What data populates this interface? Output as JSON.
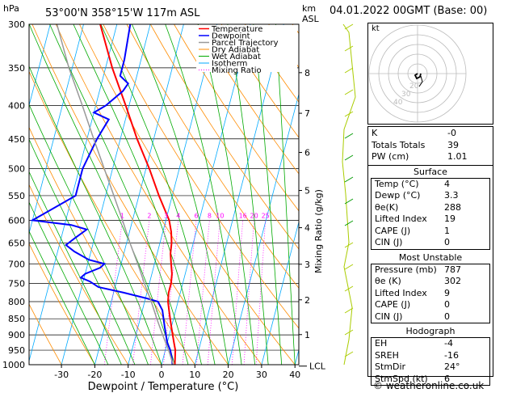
{
  "header": {
    "location": "53°00'N  358°15'W  117m  ASL",
    "datetime": "04.01.2022  00GMT  (Base: 00)",
    "hpa_label": "hPa",
    "km_label": "km",
    "asl_label": "ASL"
  },
  "footer": {
    "copyright": "© weatheronline.co.uk"
  },
  "chart_data": {
    "type": "line",
    "title": "",
    "xlabel": "Dewpoint / Temperature (°C)",
    "ylabel": "",
    "right_axis_label": "Mixing Ratio (g/kg)",
    "xlim": [
      -35,
      40
    ],
    "ylim": [
      1000,
      300
    ],
    "x_ticks": [
      -30,
      -20,
      -10,
      0,
      10,
      20,
      30,
      40
    ],
    "pressure_ticks": [
      300,
      350,
      400,
      450,
      500,
      550,
      600,
      650,
      700,
      750,
      800,
      850,
      900,
      950,
      1000
    ],
    "km_ticks": [
      {
        "label": "8",
        "p": 356
      },
      {
        "label": "7",
        "p": 411
      },
      {
        "label": "6",
        "p": 472
      },
      {
        "label": "5",
        "p": 540
      },
      {
        "label": "4",
        "p": 616
      },
      {
        "label": "3",
        "p": 701
      },
      {
        "label": "2",
        "p": 795
      },
      {
        "label": "1",
        "p": 899
      }
    ],
    "lcl_label": "LCL",
    "lcl_pressure": 1005,
    "mixing_ratio_labels": [
      "1",
      "2",
      "3",
      "4",
      "6",
      "8",
      "10",
      "16",
      "20",
      "25"
    ],
    "mixing_ratio_values": [
      1,
      2,
      3,
      4,
      6,
      8,
      10,
      16,
      20,
      25
    ],
    "legend": [
      "Temperature",
      "Dewpoint",
      "Parcel Trajectory",
      "Dry Adiabat",
      "Wet Adiabat",
      "Isotherm",
      "Mixing Ratio"
    ],
    "series": [
      {
        "name": "Temperature",
        "color": "#ff0000",
        "points": [
          [
            1000,
            4
          ],
          [
            975,
            3.5
          ],
          [
            950,
            3
          ],
          [
            925,
            2
          ],
          [
            900,
            1
          ],
          [
            875,
            0
          ],
          [
            850,
            -1
          ],
          [
            825,
            -2
          ],
          [
            800,
            -3
          ],
          [
            775,
            -3.5
          ],
          [
            750,
            -3.5
          ],
          [
            725,
            -4
          ],
          [
            700,
            -5
          ],
          [
            675,
            -6
          ],
          [
            650,
            -6.5
          ],
          [
            625,
            -7.5
          ],
          [
            600,
            -9
          ],
          [
            550,
            -14
          ],
          [
            500,
            -19
          ],
          [
            450,
            -25
          ],
          [
            400,
            -31
          ],
          [
            350,
            -38
          ],
          [
            300,
            -45
          ]
        ]
      },
      {
        "name": "Dewpoint",
        "color": "#0000ff",
        "points": [
          [
            1000,
            3.3
          ],
          [
            975,
            2.5
          ],
          [
            950,
            1.5
          ],
          [
            925,
            0
          ],
          [
            900,
            -1
          ],
          [
            875,
            -2
          ],
          [
            850,
            -3
          ],
          [
            825,
            -4
          ],
          [
            800,
            -6
          ],
          [
            790,
            -10
          ],
          [
            775,
            -17
          ],
          [
            760,
            -25
          ],
          [
            745,
            -28
          ],
          [
            735,
            -31
          ],
          [
            725,
            -30
          ],
          [
            710,
            -26
          ],
          [
            700,
            -25
          ],
          [
            690,
            -30
          ],
          [
            670,
            -35
          ],
          [
            655,
            -38
          ],
          [
            640,
            -36
          ],
          [
            620,
            -33
          ],
          [
            610,
            -38
          ],
          [
            600,
            -50
          ],
          [
            550,
            -39
          ],
          [
            500,
            -39
          ],
          [
            450,
            -37
          ],
          [
            420,
            -35
          ],
          [
            410,
            -40
          ],
          [
            400,
            -37
          ],
          [
            380,
            -33
          ],
          [
            370,
            -32
          ],
          [
            360,
            -35
          ],
          [
            340,
            -35
          ],
          [
            300,
            -36
          ]
        ]
      },
      {
        "name": "Parcel Trajectory",
        "color": "#999999",
        "points": [
          [
            1000,
            3.5
          ],
          [
            950,
            1
          ],
          [
            900,
            -2
          ],
          [
            850,
            -5
          ],
          [
            800,
            -8
          ],
          [
            750,
            -11.5
          ],
          [
            700,
            -15
          ],
          [
            650,
            -19
          ],
          [
            600,
            -23
          ],
          [
            550,
            -27.5
          ],
          [
            500,
            -32.5
          ],
          [
            450,
            -38
          ],
          [
            400,
            -44
          ],
          [
            350,
            -51
          ],
          [
            300,
            -58
          ]
        ]
      }
    ]
  },
  "hodograph": {
    "label": "kt",
    "ring_labels": [
      "40",
      "30",
      "20"
    ]
  },
  "indices": {
    "rows": [
      {
        "label": "K",
        "value": "-0"
      },
      {
        "label": "Totals Totals",
        "value": "39"
      },
      {
        "label": "PW (cm)",
        "value": "1.01"
      }
    ]
  },
  "surface": {
    "title": "Surface",
    "rows": [
      {
        "label": "Temp (°C)",
        "value": "4"
      },
      {
        "label": "Dewp (°C)",
        "value": "3.3"
      },
      {
        "label": "θe(K)",
        "value": "288"
      },
      {
        "label": "Lifted Index",
        "value": "19"
      },
      {
        "label": "CAPE (J)",
        "value": "1"
      },
      {
        "label": "CIN (J)",
        "value": "0"
      }
    ]
  },
  "most_unstable": {
    "title": "Most Unstable",
    "rows": [
      {
        "label": "Pressure (mb)",
        "value": "787"
      },
      {
        "label": "θe (K)",
        "value": "302"
      },
      {
        "label": "Lifted Index",
        "value": "9"
      },
      {
        "label": "CAPE (J)",
        "value": "0"
      },
      {
        "label": "CIN (J)",
        "value": "0"
      }
    ]
  },
  "hodograph_table": {
    "title": "Hodograph",
    "rows": [
      {
        "label": "EH",
        "value": "-4"
      },
      {
        "label": "SREH",
        "value": "-16"
      },
      {
        "label": "StmDir",
        "value": "24°"
      },
      {
        "label": "StmSpd (kt)",
        "value": "6"
      }
    ]
  }
}
